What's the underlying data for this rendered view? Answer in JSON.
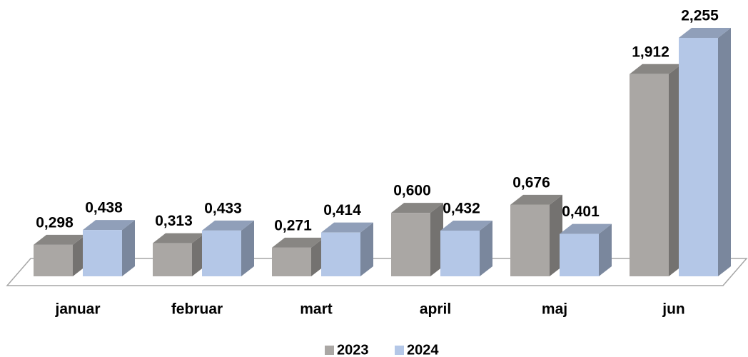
{
  "chart_data": {
    "type": "bar3d",
    "categories": [
      "januar",
      "februar",
      "mart",
      "april",
      "maj",
      "jun"
    ],
    "series": [
      {
        "name": "2023",
        "color": "#aaa7a4",
        "values": [
          0.298,
          0.313,
          0.271,
          0.6,
          0.676,
          1.912
        ],
        "value_labels": [
          "0,298",
          "0,313",
          "0,271",
          "0,600",
          "0,676",
          "1,912"
        ]
      },
      {
        "name": "2024",
        "color": "#b4c7e7",
        "values": [
          0.438,
          0.433,
          0.414,
          0.432,
          0.401,
          2.255
        ],
        "value_labels": [
          "0,438",
          "0,433",
          "0,414",
          "0,432",
          "0,401",
          "2,255"
        ]
      }
    ]
  }
}
